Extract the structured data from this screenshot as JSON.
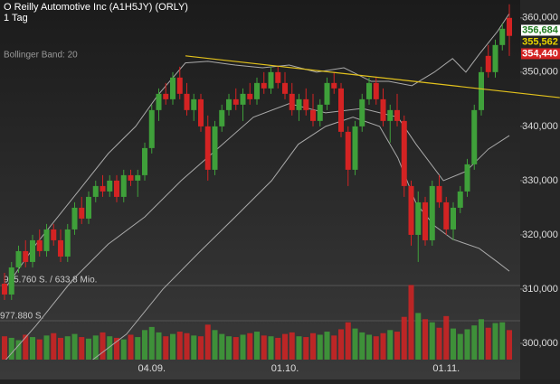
{
  "chart_data": {
    "type": "candlestick",
    "title": "O Reilly Automotive Inc (A1H5JY) (ORLY)",
    "subtitle": "1 Tag",
    "indicator_label": "Bollinger Band: 20",
    "volume_annotations": [
      "955.760 S. / 633,8 Mio.",
      "977.880 S."
    ],
    "categories": [
      null,
      null,
      null,
      null,
      null,
      null,
      null,
      null,
      null,
      null,
      null,
      null,
      null,
      null,
      null,
      null,
      null,
      null,
      null,
      null,
      null,
      "04.09.",
      null,
      null,
      null,
      null,
      null,
      null,
      null,
      null,
      null,
      null,
      null,
      null,
      null,
      null,
      null,
      null,
      null,
      null,
      "01.10.",
      null,
      null,
      null,
      null,
      null,
      null,
      null,
      null,
      null,
      null,
      null,
      null,
      null,
      null,
      null,
      null,
      null,
      null,
      null,
      null,
      null,
      null,
      "01.11.",
      null,
      null,
      null,
      null,
      null,
      null,
      null,
      null,
      null
    ],
    "open": [
      311000,
      309000,
      314000,
      317000,
      315000,
      319000,
      317000,
      321000,
      319000,
      316000,
      321000,
      325000,
      323000,
      327000,
      329000,
      328000,
      330000,
      327000,
      331000,
      330000,
      331000,
      336000,
      343000,
      346000,
      345000,
      349000,
      346000,
      343000,
      345000,
      340000,
      332000,
      340000,
      343000,
      345000,
      344000,
      346000,
      345000,
      348000,
      347000,
      350000,
      348000,
      346000,
      343000,
      345000,
      343000,
      341000,
      344000,
      348000,
      347000,
      339000,
      332000,
      340000,
      345000,
      348000,
      345000,
      341000,
      343000,
      341000,
      329000,
      320000,
      326000,
      319000,
      329000,
      326000,
      321000,
      325000,
      328000,
      333000,
      343000,
      353000,
      350000,
      355000,
      360000
    ],
    "high": [
      313000,
      315000,
      318000,
      319000,
      320000,
      321000,
      322000,
      322000,
      321000,
      322000,
      326000,
      327000,
      328000,
      330000,
      331000,
      331000,
      331000,
      332000,
      332000,
      332000,
      337000,
      344000,
      347000,
      348000,
      350000,
      351000,
      348000,
      346000,
      346000,
      342000,
      341000,
      344000,
      346000,
      347000,
      347000,
      348000,
      349000,
      350000,
      351000,
      351000,
      350000,
      348000,
      346000,
      347000,
      346000,
      345000,
      349000,
      350000,
      348000,
      340000,
      341000,
      346000,
      349000,
      349000,
      347000,
      344000,
      346000,
      342000,
      330000,
      328000,
      327000,
      330000,
      331000,
      327000,
      326000,
      329000,
      334000,
      344000,
      351000,
      355000,
      356000,
      359000,
      362500
    ],
    "low": [
      308000,
      308000,
      313000,
      314000,
      314000,
      316000,
      316000,
      318000,
      315000,
      315000,
      320000,
      322000,
      322000,
      326000,
      327000,
      327000,
      326000,
      326000,
      329000,
      327000,
      330000,
      335000,
      341000,
      344000,
      344000,
      345000,
      342000,
      341000,
      339000,
      330000,
      331000,
      339000,
      342000,
      343000,
      341000,
      344000,
      344000,
      346000,
      346000,
      347000,
      345000,
      342000,
      341000,
      342000,
      340000,
      340000,
      343000,
      346000,
      338000,
      329000,
      331000,
      339000,
      344000,
      344000,
      340000,
      337000,
      340000,
      327000,
      318000,
      315000,
      318000,
      318000,
      325000,
      320000,
      319000,
      324000,
      327000,
      332000,
      342000,
      349000,
      349000,
      354000,
      353000
    ],
    "close": [
      309000,
      314000,
      317000,
      315000,
      319000,
      317000,
      321000,
      319000,
      316000,
      321000,
      325000,
      323000,
      327000,
      329000,
      328000,
      330000,
      327000,
      331000,
      330000,
      331000,
      336000,
      343000,
      346000,
      345000,
      349000,
      346000,
      343000,
      345000,
      340000,
      332000,
      340000,
      343000,
      345000,
      344000,
      346000,
      345000,
      348000,
      347000,
      350000,
      348000,
      346000,
      343000,
      345000,
      343000,
      341000,
      344000,
      348000,
      347000,
      339000,
      332000,
      340000,
      345000,
      348000,
      345000,
      341000,
      343000,
      341000,
      329000,
      320000,
      326000,
      319000,
      329000,
      326000,
      321000,
      325000,
      328000,
      333000,
      343000,
      350000,
      350000,
      355000,
      358000,
      356684
    ],
    "volume": [
      300000,
      280000,
      250000,
      320000,
      290000,
      260000,
      310000,
      340000,
      280000,
      300000,
      330000,
      290000,
      270000,
      310000,
      350000,
      300000,
      280000,
      260000,
      320000,
      290000,
      380000,
      420000,
      350000,
      300000,
      330000,
      360000,
      340000,
      310000,
      300000,
      450000,
      380000,
      330000,
      300000,
      290000,
      320000,
      340000,
      360000,
      310000,
      300000,
      280000,
      330000,
      350000,
      300000,
      290000,
      340000,
      320000,
      360000,
      310000,
      390000,
      480000,
      400000,
      350000,
      320000,
      300000,
      340000,
      380000,
      360000,
      550000,
      960000,
      600000,
      520000,
      480000,
      410000,
      560000,
      400000,
      330000,
      390000,
      440000,
      520000,
      410000,
      470000,
      480000,
      380000
    ],
    "vlim": [
      0,
      1000000
    ],
    "up_color": "#3fa03a",
    "down_color": "#d42323",
    "bollinger": {
      "color": "#a9a9a9",
      "upper": {
        "x": [
          0,
          4.5,
          9.7,
          14.8,
          18.7,
          21.9,
          25.8,
          29,
          32.9,
          36.8,
          40.6,
          44.5,
          48.4,
          52.3,
          54.8,
          58.1,
          61.3,
          63.9,
          65.8,
          67.7,
          70.3,
          72
        ],
        "values": [
          310000,
          318300,
          326700,
          335000,
          340000,
          345800,
          351700,
          352000,
          351300,
          350800,
          351300,
          350000,
          350800,
          348300,
          348300,
          347500,
          350000,
          352500,
          350000,
          353300,
          357500,
          360800
        ]
      },
      "middle": {
        "x": [
          0,
          4.5,
          9.7,
          14.8,
          20,
          25.2,
          30.3,
          35.5,
          40.6,
          45.8,
          51,
          56.1,
          58.7,
          62.6,
          65.8,
          69,
          72
        ],
        "values": [
          296700,
          303300,
          311700,
          318300,
          323300,
          330000,
          335800,
          341700,
          344200,
          342500,
          343300,
          341700,
          336700,
          330000,
          331700,
          335800,
          338300
        ]
      },
      "lower": {
        "x": [
          12.3,
          17.4,
          22.6,
          27.7,
          32.9,
          38.1,
          41.9,
          45.8,
          49.7,
          53.5,
          56.1,
          58.7,
          61.3,
          63.9,
          67.7,
          70.3,
          72
        ],
        "values": [
          296700,
          301700,
          310000,
          316700,
          323300,
          330000,
          336700,
          340000,
          341700,
          340000,
          334200,
          325800,
          321700,
          319200,
          317500,
          315000,
          313300
        ]
      }
    },
    "trendline": {
      "x": [
        25.8,
        79.2
      ],
      "values": [
        353000,
        345300
      ],
      "color": "#e3c21c"
    },
    "price_tags": [
      {
        "value": 356684,
        "label": "356,684",
        "color": "#1f7a1f",
        "background": "#ffffff"
      },
      {
        "value": 355562,
        "label": "355,562",
        "color": "#e8d400",
        "background": "#222222"
      },
      {
        "value": 354440,
        "label": "354,440",
        "color": "#ffffff",
        "background": "#d42323"
      }
    ],
    "ylim": [
      297000,
      363300
    ],
    "yticks": [
      {
        "value": 360000,
        "label": "360,000"
      },
      {
        "value": 350000,
        "label": "350,000"
      },
      {
        "value": 340000,
        "label": "340,000"
      },
      {
        "value": 330000,
        "label": "330,000"
      },
      {
        "value": 320000,
        "label": "320,000"
      },
      {
        "value": 310000,
        "label": "310,000"
      },
      {
        "value": 300000,
        "label": "300,000"
      }
    ]
  }
}
